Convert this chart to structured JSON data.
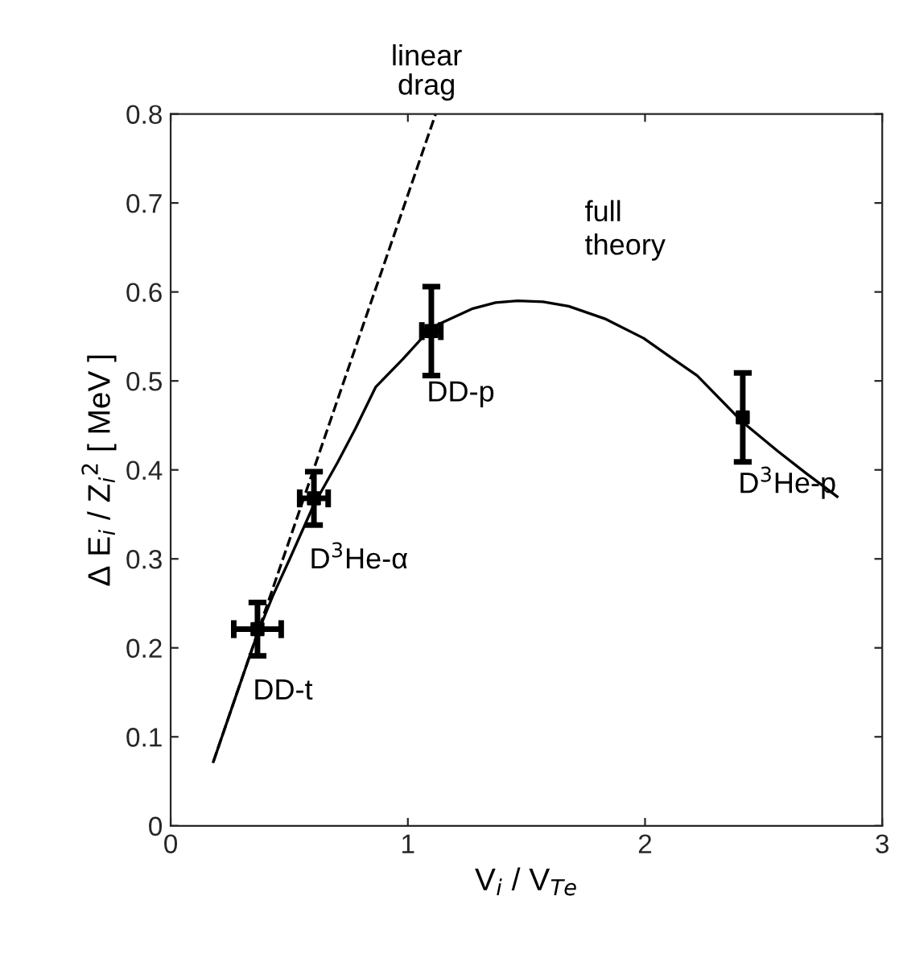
{
  "chart_data": {
    "type": "scatter",
    "xlabel": "V$_{i}$ / V$_{Te}$",
    "ylabel": "Δ E$_{i}$ / Z$_{i}$$^{2}$ [ MeV ]",
    "xlim": [
      0,
      3
    ],
    "ylim": [
      0,
      0.8
    ],
    "xticks": [
      0,
      1,
      2,
      3
    ],
    "yticks": [
      0,
      0.1,
      0.2,
      0.3,
      0.4,
      0.5,
      0.6,
      0.7,
      0.8
    ],
    "grid": false,
    "legend": false,
    "series": [
      {
        "type": "line",
        "name": "linear\ndrag",
        "color": "#000000",
        "line_style": "dashed",
        "marker": "none",
        "x": [
          0.18,
          1.117
        ],
        "values": [
          0.072,
          0.8
        ]
      },
      {
        "type": "line",
        "name": "full\ntheory",
        "color": "#000000",
        "line_style": "solid",
        "marker": "none",
        "x": [
          0.18,
          0.27,
          0.366,
          0.43,
          0.502,
          0.604,
          0.705,
          0.78,
          0.864,
          0.977,
          1.1,
          1.27,
          1.37,
          1.463,
          1.57,
          1.678,
          1.83,
          1.994,
          2.1,
          2.22,
          2.41,
          2.56,
          2.68,
          2.81
        ],
        "values": [
          0.072,
          0.142,
          0.216,
          0.258,
          0.3,
          0.361,
          0.409,
          0.447,
          0.493,
          0.524,
          0.56,
          0.581,
          0.588,
          0.59,
          0.589,
          0.584,
          0.57,
          0.548,
          0.528,
          0.506,
          0.454,
          0.421,
          0.396,
          0.37
        ]
      },
      {
        "color": "#000000",
        "marker": "square",
        "x": [
          0.366,
          0.604,
          1.099,
          2.412
        ],
        "values": [
          0.221,
          0.368,
          0.556,
          0.459
        ],
        "errors": [
          0.03,
          0.03,
          0.05,
          0.05
        ],
        "xerrors": [
          0.1,
          0.06,
          0.04,
          null
        ]
      }
    ],
    "annotations": [
      {
        "text": "DD-t",
        "x": 0.366,
        "y": 0.221
      },
      {
        "text": "D$^{3}$He-α",
        "x": 0.604,
        "y": 0.368
      },
      {
        "text": "DD-p",
        "x": 1.099,
        "y": 0.556
      },
      {
        "text": "D$^{3}$He-p",
        "x": 2.412,
        "y": 0.459
      }
    ]
  }
}
